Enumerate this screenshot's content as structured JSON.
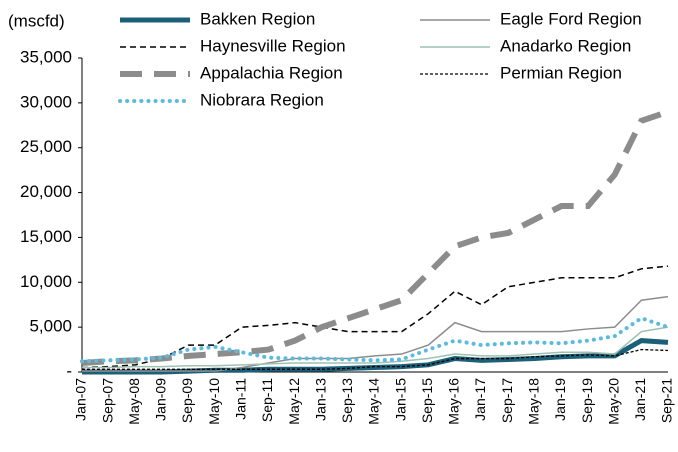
{
  "chart_data": {
    "type": "line",
    "y_label": "(mscfd)",
    "categories": [
      "Jan-07",
      "Sep-07",
      "May-08",
      "Jan-09",
      "Sep-09",
      "May-10",
      "Jan-11",
      "Sep-11",
      "May-12",
      "Jan-13",
      "Sep-13",
      "May-14",
      "Jan-15",
      "Sep-15",
      "May-16",
      "Jan-17",
      "Sep-17",
      "May-18",
      "Jan-19",
      "Sep-19",
      "May-20",
      "Jan-21",
      "Sep-21"
    ],
    "ylim": [
      0,
      35000
    ],
    "yticks": [
      {
        "value": 0,
        "label": "-"
      },
      {
        "value": 5000,
        "label": "5,000"
      },
      {
        "value": 10000,
        "label": "10,000"
      },
      {
        "value": 15000,
        "label": "15,000"
      },
      {
        "value": 20000,
        "label": "20,000"
      },
      {
        "value": 25000,
        "label": "25,000"
      },
      {
        "value": 30000,
        "label": "30,000"
      },
      {
        "value": 35000,
        "label": "35,000"
      }
    ],
    "grid": false,
    "series": [
      {
        "name": "Bakken Region",
        "color": "#1b5f78",
        "line_style": "thick",
        "values": [
          0,
          0,
          0,
          0,
          100,
          200,
          200,
          300,
          300,
          300,
          400,
          500,
          600,
          800,
          1500,
          1300,
          1400,
          1500,
          1700,
          1800,
          1800,
          3500,
          3300
        ]
      },
      {
        "name": "Eagle Ford Region",
        "color": "#8c8c8c",
        "line_style": "solid",
        "values": [
          100,
          100,
          100,
          100,
          100,
          100,
          500,
          1000,
          1500,
          1500,
          1500,
          1800,
          2000,
          3000,
          5500,
          4500,
          4500,
          4500,
          4500,
          4800,
          5000,
          8000,
          8400
        ]
      },
      {
        "name": "Haynesville Region",
        "color": "#000000",
        "line_style": "dashed",
        "values": [
          500,
          600,
          800,
          1500,
          3000,
          3000,
          5000,
          5200,
          5500,
          5000,
          4500,
          4500,
          4500,
          6500,
          9000,
          7500,
          9500,
          10000,
          10500,
          10500,
          10500,
          11500,
          11800
        ]
      },
      {
        "name": "Anadarko Region",
        "color": "#9fc1b2",
        "line_style": "solid",
        "values": [
          500,
          500,
          600,
          600,
          700,
          700,
          800,
          900,
          1000,
          1000,
          1000,
          1000,
          1200,
          1500,
          2000,
          1800,
          1800,
          2000,
          2200,
          2200,
          2000,
          4500,
          5000
        ]
      },
      {
        "name": "Appalachia Region",
        "color": "#8c8c8c",
        "line_style": "long-dash",
        "values": [
          1000,
          1200,
          1300,
          1500,
          1800,
          2000,
          2200,
          2500,
          3500,
          5000,
          6000,
          7000,
          8000,
          11000,
          14000,
          15000,
          15500,
          17000,
          18500,
          18500,
          22000,
          28000,
          29000
        ]
      },
      {
        "name": "Permian Region",
        "color": "#000000",
        "line_style": "fine-dash",
        "values": [
          300,
          300,
          300,
          300,
          300,
          300,
          300,
          300,
          300,
          300,
          400,
          600,
          600,
          800,
          1500,
          1500,
          1500,
          1700,
          1800,
          1900,
          1800,
          2500,
          2400
        ]
      },
      {
        "name": "Niobrara Region",
        "color": "#5bbbdd",
        "line_style": "dotted",
        "values": [
          1200,
          1300,
          1400,
          1600,
          2500,
          2800,
          2200,
          1600,
          1500,
          1500,
          1400,
          1300,
          1400,
          2500,
          3500,
          3000,
          3200,
          3300,
          3200,
          3500,
          4000,
          6000,
          5000
        ]
      }
    ]
  }
}
